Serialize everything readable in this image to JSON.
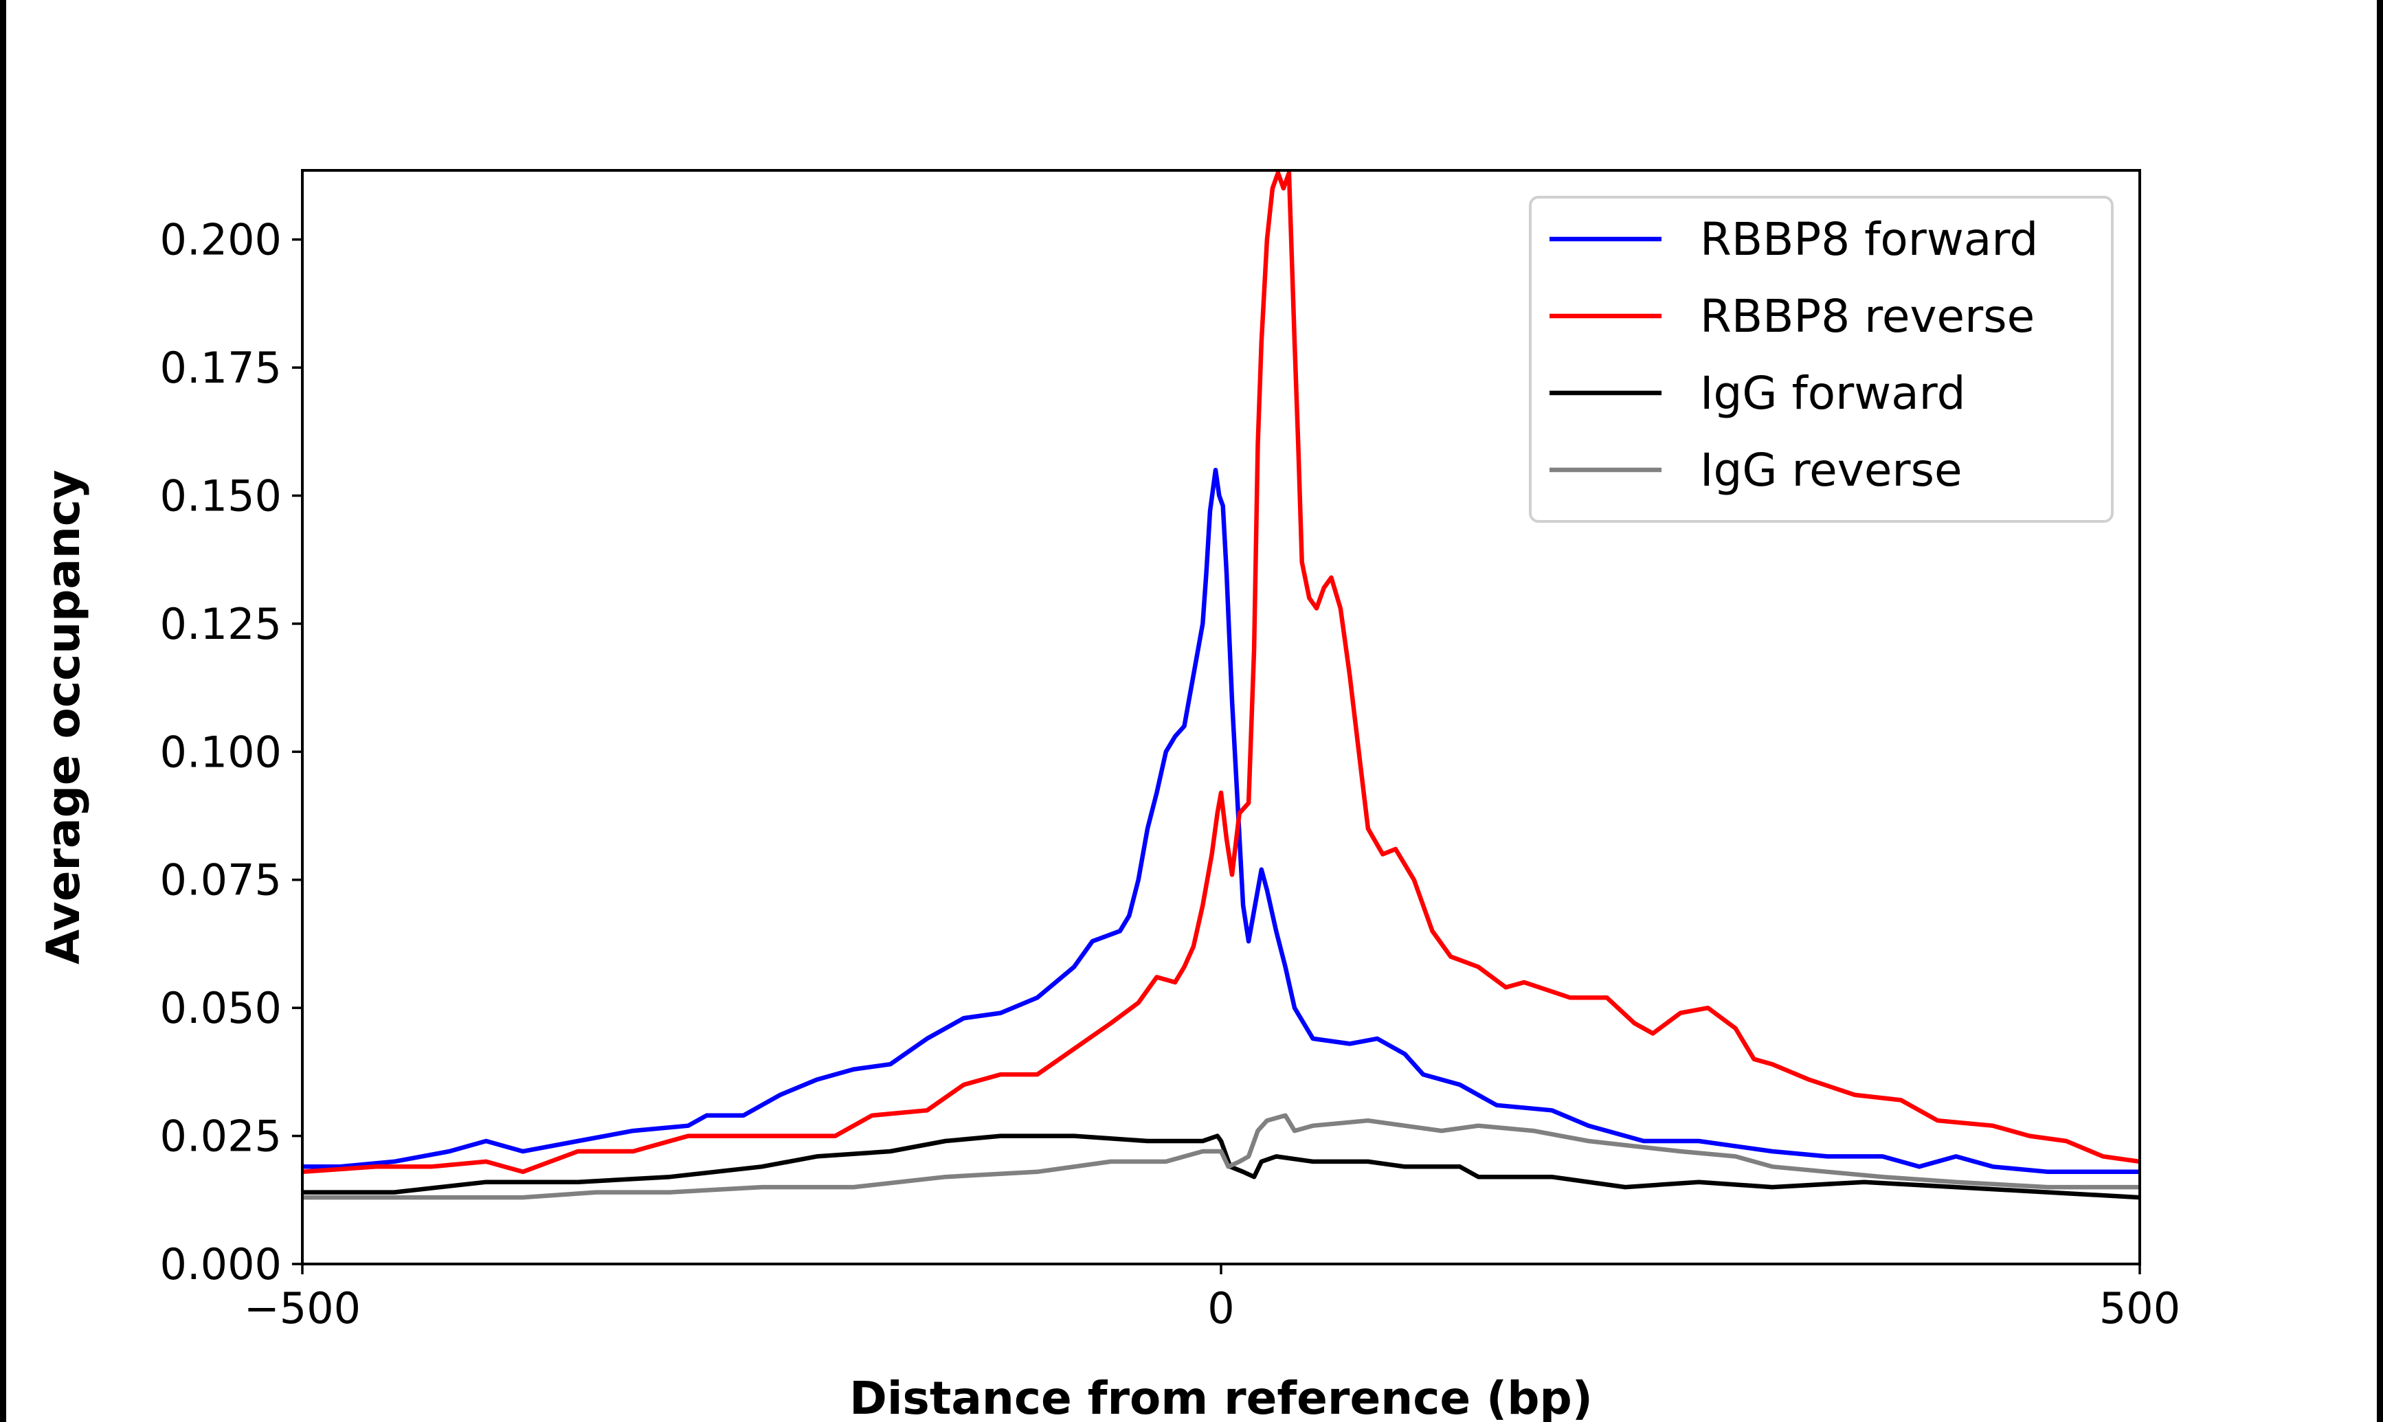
{
  "chart_data": {
    "type": "line",
    "title": "",
    "xlabel": "Distance from reference (bp)",
    "ylabel": "Average occupancy",
    "xlim": [
      -500,
      500
    ],
    "ylim": [
      0,
      0.2135
    ],
    "xticks": [
      -500,
      0,
      500
    ],
    "xtick_labels": [
      "−500",
      "0",
      "500"
    ],
    "yticks": [
      0,
      0.025,
      0.05,
      0.075,
      0.1,
      0.125,
      0.15,
      0.175,
      0.2
    ],
    "ytick_labels": [
      "0.000",
      "0.025",
      "0.050",
      "0.075",
      "0.100",
      "0.125",
      "0.150",
      "0.175",
      "0.200"
    ],
    "grid": false,
    "legend_position": "top-right",
    "series": [
      {
        "name": "RBBP8 forward",
        "color": "#0000ff",
        "x": [
          -500,
          -480,
          -450,
          -420,
          -400,
          -380,
          -350,
          -320,
          -290,
          -280,
          -260,
          -240,
          -220,
          -200,
          -180,
          -160,
          -140,
          -120,
          -100,
          -80,
          -70,
          -55,
          -50,
          -45,
          -40,
          -35,
          -30,
          -25,
          -20,
          -15,
          -10,
          -8,
          -6,
          -3,
          -1,
          1,
          3,
          6,
          9,
          12,
          15,
          18,
          22,
          25,
          30,
          35,
          40,
          50,
          70,
          85,
          100,
          110,
          130,
          150,
          180,
          200,
          230,
          260,
          300,
          330,
          360,
          380,
          400,
          420,
          450,
          480,
          500
        ],
        "y": [
          0.019,
          0.019,
          0.02,
          0.022,
          0.024,
          0.022,
          0.024,
          0.026,
          0.027,
          0.029,
          0.029,
          0.033,
          0.036,
          0.038,
          0.039,
          0.044,
          0.048,
          0.049,
          0.052,
          0.058,
          0.063,
          0.065,
          0.068,
          0.075,
          0.085,
          0.092,
          0.1,
          0.103,
          0.105,
          0.115,
          0.125,
          0.135,
          0.147,
          0.155,
          0.15,
          0.148,
          0.135,
          0.11,
          0.09,
          0.07,
          0.063,
          0.069,
          0.077,
          0.073,
          0.065,
          0.058,
          0.05,
          0.044,
          0.043,
          0.044,
          0.041,
          0.037,
          0.035,
          0.031,
          0.03,
          0.027,
          0.024,
          0.024,
          0.022,
          0.021,
          0.021,
          0.019,
          0.021,
          0.019,
          0.018,
          0.018,
          0.018
        ]
      },
      {
        "name": "RBBP8 reverse",
        "color": "#ff0000",
        "x": [
          -500,
          -460,
          -430,
          -400,
          -380,
          -350,
          -320,
          -290,
          -260,
          -230,
          -210,
          -190,
          -160,
          -140,
          -120,
          -100,
          -80,
          -60,
          -45,
          -35,
          -25,
          -20,
          -15,
          -10,
          -5,
          -2,
          0,
          3,
          6,
          10,
          15,
          18,
          20,
          22,
          25,
          28,
          31,
          34,
          37,
          40,
          42,
          44,
          48,
          52,
          56,
          60,
          65,
          70,
          75,
          80,
          88,
          95,
          105,
          115,
          125,
          140,
          155,
          165,
          190,
          210,
          225,
          235,
          250,
          265,
          280,
          290,
          300,
          320,
          345,
          370,
          390,
          420,
          440,
          460,
          480,
          500
        ],
        "y": [
          0.018,
          0.019,
          0.019,
          0.02,
          0.018,
          0.022,
          0.022,
          0.025,
          0.025,
          0.025,
          0.025,
          0.029,
          0.03,
          0.035,
          0.037,
          0.037,
          0.042,
          0.047,
          0.051,
          0.056,
          0.055,
          0.058,
          0.062,
          0.07,
          0.08,
          0.088,
          0.092,
          0.083,
          0.076,
          0.088,
          0.09,
          0.12,
          0.16,
          0.18,
          0.2,
          0.21,
          0.213,
          0.21,
          0.213,
          0.18,
          0.16,
          0.137,
          0.13,
          0.128,
          0.132,
          0.134,
          0.128,
          0.115,
          0.1,
          0.085,
          0.08,
          0.081,
          0.075,
          0.065,
          0.06,
          0.058,
          0.054,
          0.055,
          0.052,
          0.052,
          0.047,
          0.045,
          0.049,
          0.05,
          0.046,
          0.04,
          0.039,
          0.036,
          0.033,
          0.032,
          0.028,
          0.027,
          0.025,
          0.024,
          0.021,
          0.02
        ]
      },
      {
        "name": "IgG forward",
        "color": "#000000",
        "x": [
          -500,
          -450,
          -400,
          -350,
          -300,
          -250,
          -220,
          -180,
          -150,
          -120,
          -80,
          -40,
          -10,
          -2,
          0,
          5,
          12,
          18,
          22,
          30,
          50,
          80,
          100,
          130,
          140,
          180,
          220,
          260,
          300,
          350,
          400,
          450,
          500
        ],
        "y": [
          0.014,
          0.014,
          0.016,
          0.016,
          0.017,
          0.019,
          0.021,
          0.022,
          0.024,
          0.025,
          0.025,
          0.024,
          0.024,
          0.025,
          0.024,
          0.019,
          0.018,
          0.017,
          0.02,
          0.021,
          0.02,
          0.02,
          0.019,
          0.019,
          0.017,
          0.017,
          0.015,
          0.016,
          0.015,
          0.016,
          0.015,
          0.014,
          0.013
        ]
      },
      {
        "name": "IgG reverse",
        "color": "#808080",
        "x": [
          -500,
          -450,
          -380,
          -340,
          -300,
          -250,
          -200,
          -150,
          -100,
          -60,
          -30,
          -10,
          0,
          4,
          10,
          15,
          20,
          25,
          35,
          40,
          50,
          80,
          100,
          120,
          140,
          170,
          200,
          250,
          280,
          300,
          330,
          360,
          400,
          450,
          500
        ],
        "y": [
          0.013,
          0.013,
          0.013,
          0.014,
          0.014,
          0.015,
          0.015,
          0.017,
          0.018,
          0.02,
          0.02,
          0.022,
          0.022,
          0.019,
          0.02,
          0.021,
          0.026,
          0.028,
          0.029,
          0.026,
          0.027,
          0.028,
          0.027,
          0.026,
          0.027,
          0.026,
          0.024,
          0.022,
          0.021,
          0.019,
          0.018,
          0.017,
          0.016,
          0.015,
          0.015
        ]
      }
    ]
  }
}
